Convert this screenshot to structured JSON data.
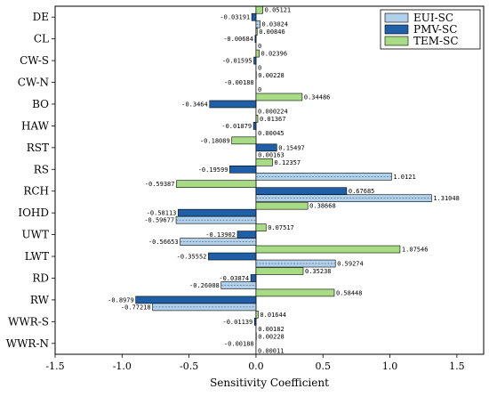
{
  "chart_data": {
    "type": "bar",
    "orientation": "horizontal",
    "xlabel": "Sensitivity Coefficient",
    "ylabel": "",
    "xlim": [
      -1.5,
      1.7
    ],
    "xticks": [
      "-1.5",
      "-1.0",
      "-0.5",
      "0.0",
      "0.5",
      "1.0",
      "1.5"
    ],
    "xtick_values": [
      -1.5,
      -1.0,
      -0.5,
      0.0,
      0.5,
      1.0,
      1.5
    ],
    "grid": false,
    "legend_position": "top-right",
    "categories": [
      "DE",
      "CL",
      "CW-S",
      "CW-N",
      "BO",
      "HAW",
      "RST",
      "RS",
      "RCH",
      "IOHD",
      "UWT",
      "LWT",
      "RD",
      "RW",
      "WWR-S",
      "WWR-N"
    ],
    "series": [
      {
        "name": "EUI-SC",
        "color": "#b0d0ec",
        "values": [
          0.03024,
          0,
          0,
          0,
          0.000224,
          0.00045,
          0.00163,
          1.0121,
          1.31048,
          -0.59677,
          -0.56653,
          0.59274,
          -0.26008,
          -0.77218,
          0.00182,
          0.00011
        ],
        "labels": [
          "0.03024",
          "0",
          "0",
          "0",
          "0.000224",
          "0.00045",
          "0.00163",
          "1.0121",
          "1.31048",
          "-0.59677",
          "-0.56653",
          "0.59274",
          "-0.26008",
          "-0.77218",
          "0.00182",
          "0.00011"
        ]
      },
      {
        "name": "PMV-SC",
        "color": "#1f5fa8",
        "values": [
          -0.03191,
          -0.00684,
          -0.01595,
          -0.00188,
          -0.3464,
          -0.01879,
          0.15497,
          -0.19599,
          0.67685,
          -0.58113,
          -0.13902,
          -0.35552,
          -0.03874,
          -0.8979,
          -0.01139,
          -0.00188
        ],
        "labels": [
          "-0.03191",
          "-0.00684",
          "-0.01595",
          "-0.00188",
          "-0.3464",
          "-0.01879",
          "0.15497",
          "-0.19599",
          "0.67685",
          "-0.58113",
          "-0.13902",
          "-0.35552",
          "-0.03874",
          "-0.8979",
          "-0.01139",
          "-0.00188"
        ]
      },
      {
        "name": "TEM-SC",
        "color": "#a8dc84",
        "values": [
          0.05121,
          0.00846,
          0.02396,
          0.00228,
          0.34486,
          0.01367,
          -0.18089,
          0.12357,
          -0.59387,
          0.38668,
          0.07517,
          1.07546,
          0.35238,
          0.58448,
          0.01644,
          0.00228
        ],
        "labels": [
          "0.05121",
          "0.00846",
          "0.02396",
          "0.00228",
          "0.34486",
          "0.01367",
          "-0.18089",
          "0.12357",
          "-0.59387",
          "0.38668",
          "0.07517",
          "1.07546",
          "0.35238",
          "0.58448",
          "0.01644",
          "0.00228"
        ]
      }
    ]
  }
}
